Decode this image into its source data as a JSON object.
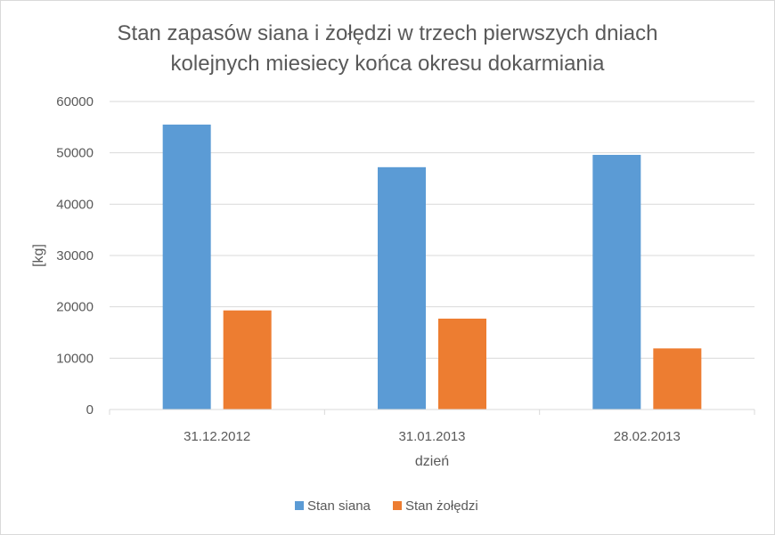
{
  "chart_data": {
    "type": "bar",
    "title_lines": [
      "Stan zapasów siana i żołędzi  w trzech pierwszych dniach",
      "kolejnych miesiecy końca okresu dokarmiania"
    ],
    "xlabel": "dzień",
    "ylabel": "[kg]",
    "categories": [
      "31.12.2012",
      "31.01.2013",
      "28.02.2013"
    ],
    "ylim": [
      0,
      60000
    ],
    "yticks": [
      0,
      10000,
      20000,
      30000,
      40000,
      50000,
      60000
    ],
    "grid": true,
    "legend_position": "bottom",
    "series": [
      {
        "name": "Stan siana",
        "color": "#5b9bd5",
        "values": [
          55500,
          47200,
          49600
        ]
      },
      {
        "name": "Stan żołędzi",
        "color": "#ed7d31",
        "values": [
          19300,
          17700,
          11900
        ]
      }
    ]
  }
}
